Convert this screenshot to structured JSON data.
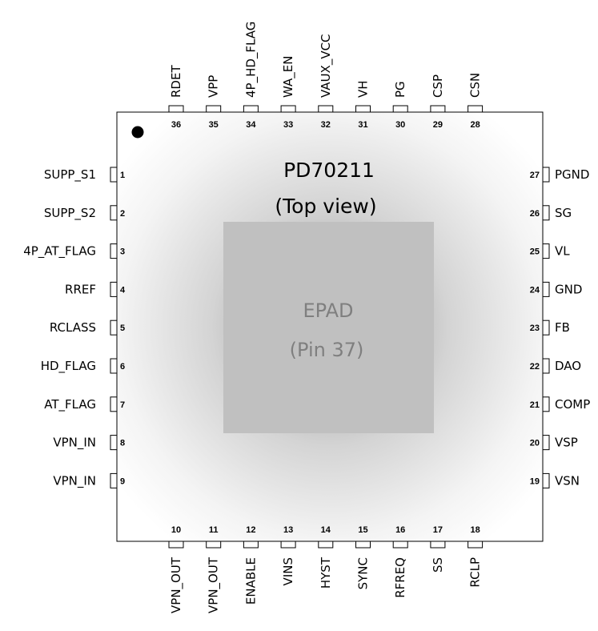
{
  "title_line1": "PD70211",
  "title_line2": "(Top view)",
  "epad": {
    "line1": "EPAD",
    "line2": "(Pin 37)"
  },
  "pins": {
    "left": [
      {
        "num": "1",
        "name": "SUPP_S1"
      },
      {
        "num": "2",
        "name": "SUPP_S2"
      },
      {
        "num": "3",
        "name": "4P_AT_FLAG"
      },
      {
        "num": "4",
        "name": "RREF"
      },
      {
        "num": "5",
        "name": "RCLASS"
      },
      {
        "num": "6",
        "name": "HD_FLAG"
      },
      {
        "num": "7",
        "name": "AT_FLAG"
      },
      {
        "num": "8",
        "name": "VPN_IN"
      },
      {
        "num": "9",
        "name": "VPN_IN"
      }
    ],
    "bottom": [
      {
        "num": "10",
        "name": "VPN_OUT"
      },
      {
        "num": "11",
        "name": "VPN_OUT"
      },
      {
        "num": "12",
        "name": "ENABLE"
      },
      {
        "num": "13",
        "name": "VINS"
      },
      {
        "num": "14",
        "name": "HYST"
      },
      {
        "num": "15",
        "name": "SYNC"
      },
      {
        "num": "16",
        "name": "RFREQ"
      },
      {
        "num": "17",
        "name": "SS"
      },
      {
        "num": "18",
        "name": "RCLP"
      }
    ],
    "right": [
      {
        "num": "19",
        "name": "VSN"
      },
      {
        "num": "20",
        "name": "VSP"
      },
      {
        "num": "21",
        "name": "COMP"
      },
      {
        "num": "22",
        "name": "DAO"
      },
      {
        "num": "23",
        "name": "FB"
      },
      {
        "num": "24",
        "name": "GND"
      },
      {
        "num": "25",
        "name": "VL"
      },
      {
        "num": "26",
        "name": "SG"
      },
      {
        "num": "27",
        "name": "PGND"
      }
    ],
    "top": [
      {
        "num": "28",
        "name": "CSN"
      },
      {
        "num": "29",
        "name": "CSP"
      },
      {
        "num": "30",
        "name": "PG"
      },
      {
        "num": "31",
        "name": "VH"
      },
      {
        "num": "32",
        "name": "VAUX_VCC"
      },
      {
        "num": "33",
        "name": "WA_EN"
      },
      {
        "num": "34",
        "name": "4P_HD_FLAG"
      },
      {
        "num": "35",
        "name": "VPP"
      },
      {
        "num": "36",
        "name": "RDET"
      }
    ]
  }
}
